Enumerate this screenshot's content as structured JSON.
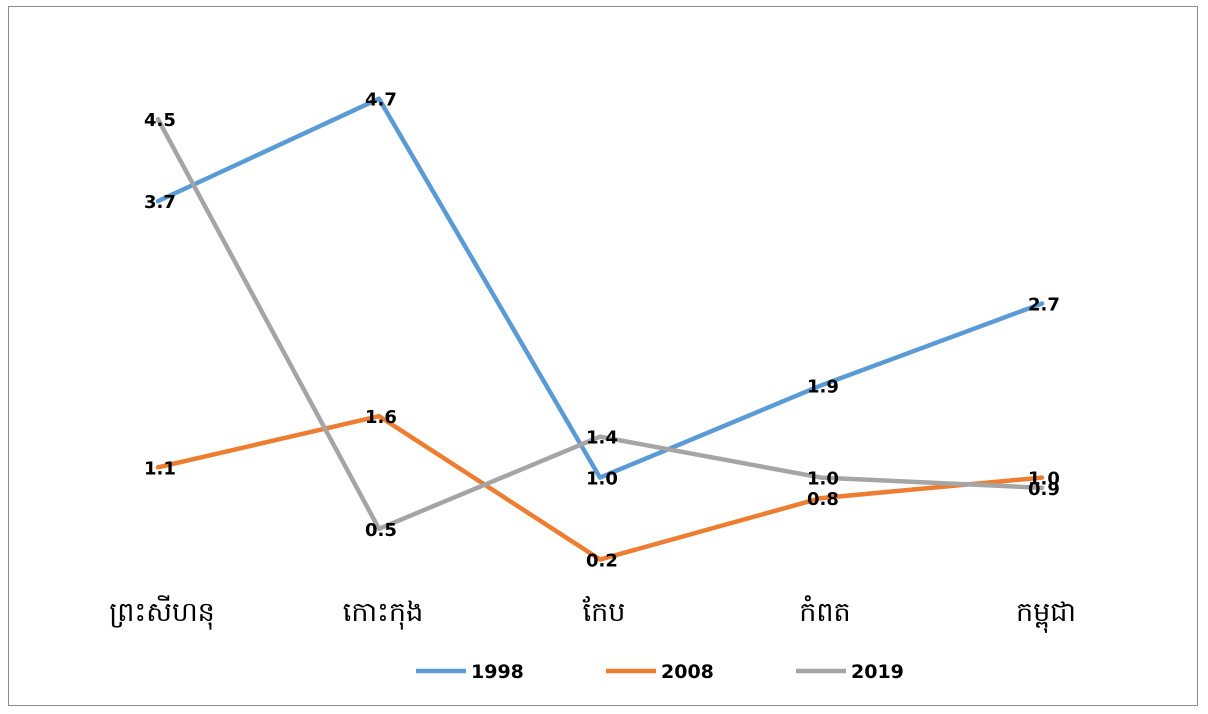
{
  "chart_data": {
    "type": "line",
    "categories": [
      "ព្រះសីហនុ",
      "កោះកុង",
      "កែប",
      "កំពត",
      "កម្ពុជា"
    ],
    "series": [
      {
        "name": "1998",
        "values": [
          3.7,
          4.7,
          1.0,
          1.9,
          2.7
        ],
        "labels": [
          "3.7",
          "4.7",
          "1.0",
          "1.9",
          "2.7"
        ],
        "color": "#5b9bd5"
      },
      {
        "name": "2008",
        "values": [
          1.1,
          1.6,
          0.2,
          0.8,
          1.0
        ],
        "labels": [
          "1.1",
          "1.6",
          "0.2",
          "0.8",
          "1.0"
        ],
        "color": "#ed7d31"
      },
      {
        "name": "2019",
        "values": [
          4.5,
          0.5,
          1.4,
          1.0,
          0.9
        ],
        "labels": [
          "4.5",
          "0.5",
          "1.4",
          "1.0",
          "0.9"
        ],
        "color": "#a5a5a5"
      }
    ],
    "title": "",
    "xlabel": "",
    "ylabel": "",
    "ylim": [
      0,
      5
    ],
    "grid": false,
    "legend": "bottom"
  }
}
